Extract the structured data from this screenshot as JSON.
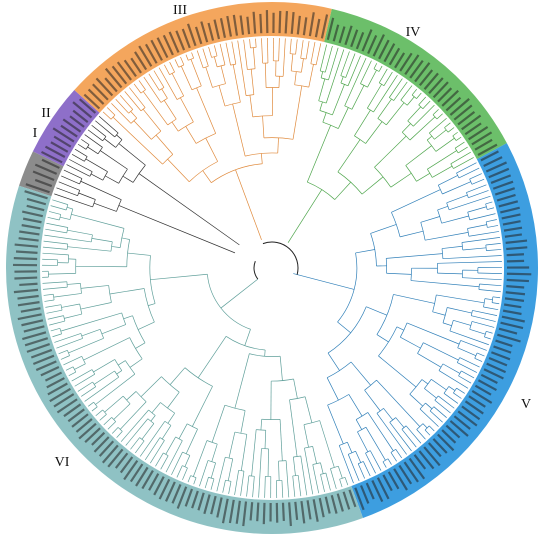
{
  "clades": [
    {
      "label": "I",
      "color": "#8c8c8c",
      "start": 288,
      "end": 296,
      "branch": "#333333"
    },
    {
      "label": "II",
      "color": "#8e6fc9",
      "start": 296,
      "end": 312,
      "branch": "#333333"
    },
    {
      "label": "III",
      "color": "#f4a65d",
      "start": 312,
      "end": 373,
      "branch": "#e08a3c"
    },
    {
      "label": "IV",
      "color": "#6cbf6a",
      "start": 373,
      "end": 422,
      "branch": "#4fa64d"
    },
    {
      "label": "V",
      "color": "#3d9ee0",
      "start": 422,
      "end": 520,
      "branch": "#2f7fb8"
    },
    {
      "label": "VI",
      "color": "#8fc2c4",
      "start": 520,
      "end": 648,
      "branch": "#5f9f9a"
    }
  ]
}
